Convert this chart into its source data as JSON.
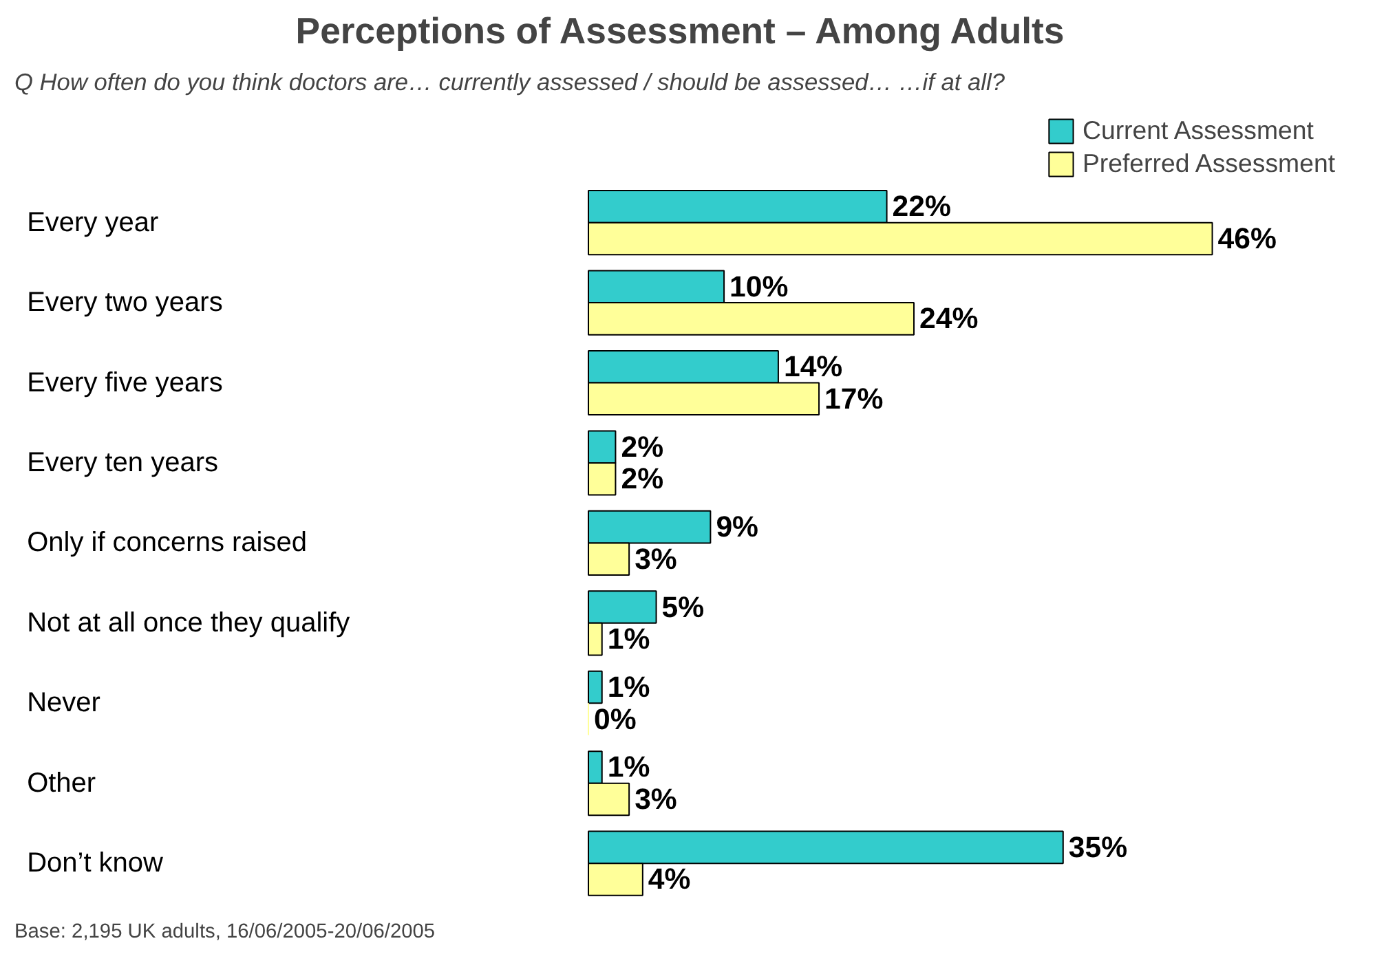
{
  "chart_data": {
    "type": "bar",
    "orientation": "horizontal",
    "title": "Perceptions of Assessment – Among Adults",
    "subtitle": "How often do you think doctors are… currently assessed / should be assessed… …if at all?",
    "categories": [
      "Every year",
      "Every two years",
      "Every five years",
      "Every ten years",
      "Only if concerns raised",
      "Not at all once they qualify",
      "Never",
      "Other",
      "Don’t know"
    ],
    "series": [
      {
        "name": "Current Assessment",
        "color": "#33cccc",
        "values": [
          22,
          10,
          14,
          2,
          9,
          5,
          1,
          1,
          35
        ],
        "value_labels": [
          "22%",
          "10%",
          "14%",
          "2%",
          "9%",
          "5%",
          "1%",
          "1%",
          "35%"
        ]
      },
      {
        "name": "Preferred Assessment",
        "color": "#ffff99",
        "values": [
          46,
          24,
          17,
          2,
          3,
          1,
          0,
          3,
          4
        ],
        "value_labels": [
          "46%",
          "24%",
          "17%",
          "2%",
          "3%",
          "1%",
          "0%",
          "3%",
          "4%"
        ]
      }
    ],
    "annotations": [
      "Q",
      "Base: 2,195 UK adults, 16/06/2005-20/06/2005"
    ],
    "legend": "top right",
    "grid": false
  }
}
